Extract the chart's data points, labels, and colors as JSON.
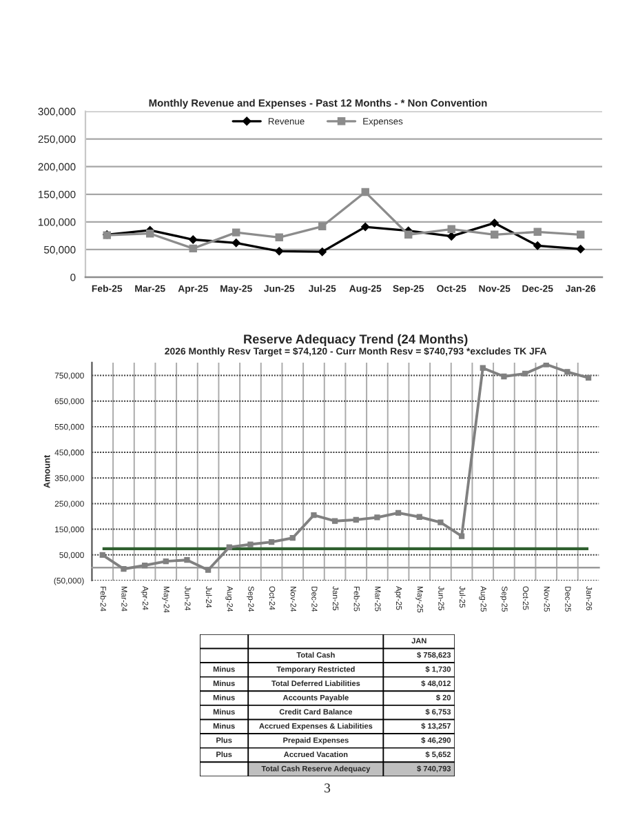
{
  "chart_data": [
    {
      "type": "line",
      "title": "Monthly Revenue and Expenses - Past 12 Months - * Non Convention",
      "categories": [
        "Feb-25",
        "Mar-25",
        "Apr-25",
        "May-25",
        "Jun-25",
        "Jul-25",
        "Aug-25",
        "Sep-25",
        "Oct-25",
        "Nov-25",
        "Dec-25",
        "Jan-26"
      ],
      "series": [
        {
          "name": "Revenue",
          "color": "#000000",
          "marker": "diamond",
          "values": [
            77000,
            85000,
            68000,
            62000,
            47000,
            46000,
            91000,
            84000,
            74000,
            98000,
            57000,
            51000
          ]
        },
        {
          "name": "Expenses",
          "color": "#8c8c8c",
          "marker": "square",
          "values": [
            76000,
            79000,
            52000,
            81000,
            72000,
            92000,
            154000,
            77000,
            87000,
            77000,
            82000,
            77000
          ]
        }
      ],
      "ylim": [
        0,
        300000
      ],
      "yticks": [
        0,
        {
          "value": 50000,
          "label": "50,000"
        },
        {
          "value": 100000,
          "label": "100,000"
        },
        {
          "value": 150000,
          "label": "150,000"
        },
        {
          "value": 200000,
          "label": "200,000"
        },
        {
          "value": 250000,
          "label": "250,000"
        },
        {
          "value": 300000,
          "label": "300,000"
        }
      ],
      "grid": "y",
      "legend": "top"
    },
    {
      "type": "line",
      "title": "Reserve Adequacy Trend (24 Months)",
      "subtitle": "2026 Monthly Resv Target = $74,120 - Curr Month Resv = $740,793 *excludes TK JFA",
      "ylabel": "Amount",
      "categories": [
        "Feb-24",
        "Mar-24",
        "Apr-24",
        "May-24",
        "Jun-24",
        "Jul-24",
        "Aug-24",
        "Sep-24",
        "Oct-24",
        "Nov-24",
        "Dec-24",
        "Jan-25",
        "Feb-25",
        "Mar-25",
        "Apr-25",
        "May-25",
        "Jun-25",
        "Jul-25",
        "Aug-25",
        "Sep-25",
        "Oct-25",
        "Nov-25",
        "Dec-25",
        "Jan-26"
      ],
      "series": [
        {
          "color": "#808080",
          "values": [
            50000,
            -5000,
            9000,
            25000,
            30000,
            -9000,
            80000,
            91000,
            100000,
            116000,
            205000,
            182000,
            187000,
            196000,
            214000,
            198000,
            177000,
            123000,
            779000,
            746000,
            757000,
            793000,
            764000,
            741000
          ]
        }
      ],
      "marker": "square",
      "ylim": [
        -50000,
        800000
      ],
      "yticks": [
        {
          "value": -50000,
          "label": "(50,000)"
        },
        {
          "value": 50000,
          "label": "50,000"
        },
        {
          "value": 150000,
          "label": "150,000"
        },
        {
          "value": 250000,
          "label": "250,000"
        },
        {
          "value": 350000,
          "label": "350,000"
        },
        {
          "value": 450000,
          "label": "450,000"
        },
        {
          "value": 550000,
          "label": "550,000"
        },
        {
          "value": 650000,
          "label": "650,000"
        },
        {
          "value": 750000,
          "label": "750,000"
        }
      ],
      "grid": true,
      "ref_lines": [
        {
          "axis": "y",
          "value": 74120,
          "color": "#2f5f2f"
        }
      ]
    },
    {
      "type": "other",
      "categories": [
        "JAN"
      ],
      "y_categories": [
        "Total Cash",
        "Temporary Restricted",
        "Total Deferred Liabilities",
        "Accounts Payable",
        "Credit Card Balance",
        "Accrued Expenses & Liabilities",
        "Prepaid Expenses",
        "Accrued Vacation",
        "Total Cash Reserve Adequacy"
      ],
      "y2_categories": [
        null,
        "Minus",
        "Minus",
        "Minus",
        "Minus",
        "Minus",
        "Plus",
        "Plus",
        null
      ],
      "cell_labels": [
        [
          "$ 758,623"
        ],
        [
          "$ 1,730"
        ],
        [
          "$ 48,012"
        ],
        [
          "$ 20"
        ],
        [
          "$ 6,753"
        ],
        [
          "$ 13,257"
        ],
        [
          "$ 46,290"
        ],
        [
          "$ 5,652"
        ],
        [
          "$ 740,793"
        ]
      ],
      "colors": [
        "#ffffff",
        "#ffffff",
        "#ffffff",
        "#ffffff",
        "#ffffff",
        "#ffffff",
        "#ffffff",
        "#ffffff",
        "#bfbfbf"
      ],
      "annotations": [
        "3"
      ]
    }
  ]
}
